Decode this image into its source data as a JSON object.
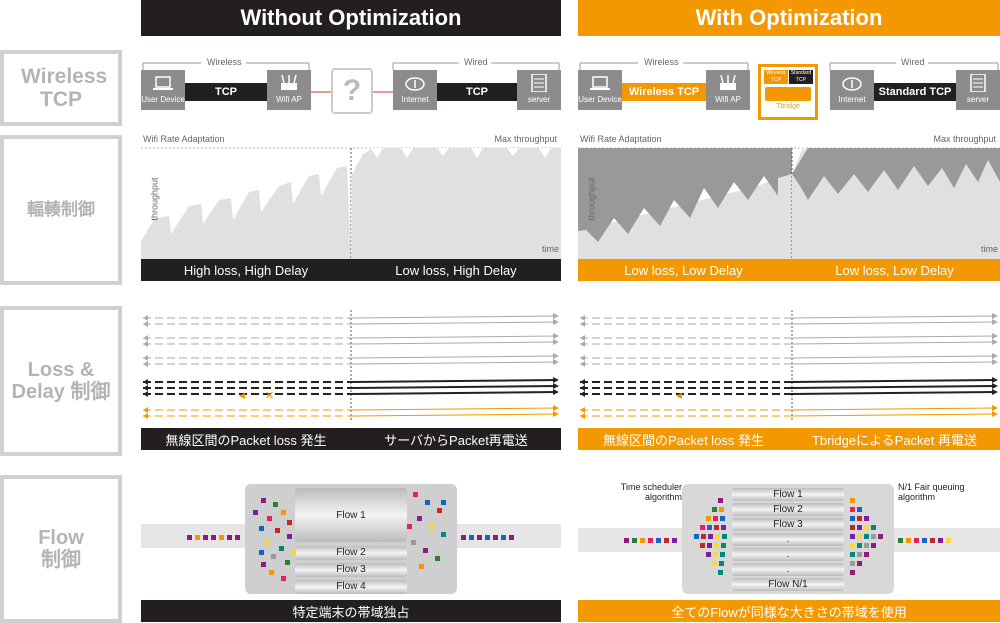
{
  "headers": {
    "left": "Without Optimization",
    "right": "With Optimization"
  },
  "rows": {
    "wireless_tcp": "Wireless TCP",
    "rate_control": "輻輳制御",
    "loss_delay": "Loss & Delay 制御",
    "flow": "Flow 制御"
  },
  "topology": {
    "wireless": "Wireless",
    "wired": "Wired",
    "user_device": "User Device",
    "wifi_ap": "Wifi AP",
    "internet": "Internet",
    "server": "server",
    "tcp": "TCP",
    "unknown": "?",
    "wireless_tcp_link": "Wireless TCP",
    "standard_tcp_link": "Standard TCP",
    "tbridge_wireless_tcp": "Wireless TCP",
    "tbridge_standard_tcp": "Standard TCP",
    "tbridge_name": "Tbridge"
  },
  "throughput": {
    "wifi_rate": "Wifi Rate Adaptation",
    "max_throughput": "Max throughput",
    "ylabel": "throughput",
    "xlabel": "time",
    "left_bar": [
      "High loss, High Delay",
      "Low loss, High Delay"
    ],
    "right_bar": [
      "Low loss, Low Delay",
      "Low loss, Low Delay"
    ]
  },
  "packets": {
    "left_bar": [
      "無線区間のPacket loss 発生",
      "サーバからPacket再電送"
    ],
    "right_bar": [
      "無線区間のPacket loss 発生",
      "TbridgeによるPacket 再電送"
    ]
  },
  "flow": {
    "left_flows": [
      "Flow 1",
      "Flow 2",
      "Flow 3",
      "Flow 4"
    ],
    "right_flows": [
      "Flow 1",
      "Flow 2",
      "Flow 3",
      ".",
      ".",
      ".",
      "Flow N/1"
    ],
    "time_scheduler": "Time scheduler algorithm",
    "fair_queuing": "N/1 Fair queuing algorithm",
    "left_bar": "特定端末の帯域独占",
    "right_bar": "全てのFlowが同様な大きさの帯域を使用"
  },
  "colors": {
    "dark": "#231f20",
    "accent": "#f39800",
    "gray": "#8c8c8c",
    "light": "#e6e6e6"
  }
}
